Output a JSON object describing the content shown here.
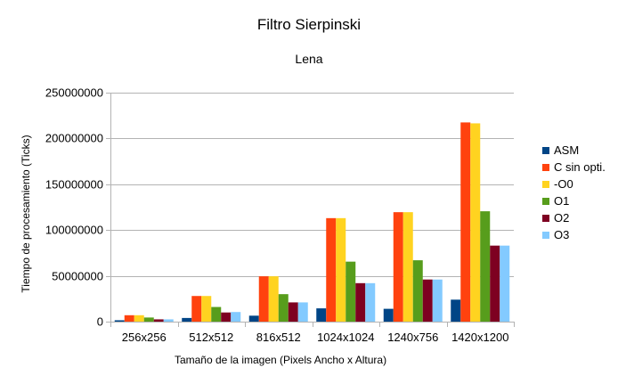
{
  "chart_data": {
    "type": "bar",
    "title": "Filtro Sierpinski",
    "subtitle": "Lena",
    "xlabel": "Tamaño de la imagen (Pixels Ancho x Altura)",
    "ylabel": "Tiempo de procesamiento (Ticks)",
    "ylim": [
      0,
      250000000
    ],
    "yticks": [
      0,
      50000000,
      100000000,
      150000000,
      200000000,
      250000000
    ],
    "ytick_labels": [
      "0",
      "50000000",
      "100000000",
      "150000000",
      "200000000",
      "250000000"
    ],
    "categories": [
      "256x256",
      "512x512",
      "816x512",
      "1024x1024",
      "1240x756",
      "1420x1200"
    ],
    "grid": true,
    "legend_position": "right",
    "series": [
      {
        "name": "ASM",
        "color": "#004586",
        "values": [
          1500000,
          4000000,
          6500000,
          14500000,
          14000000,
          24000000
        ]
      },
      {
        "name": "C sin opti.",
        "color": "#ff420e",
        "values": [
          7000000,
          28000000,
          49500000,
          113000000,
          119500000,
          217500000
        ]
      },
      {
        "name": "-O0",
        "color": "#ffd320",
        "values": [
          7000000,
          28000000,
          49500000,
          113000000,
          119500000,
          216500000
        ]
      },
      {
        "name": "O1",
        "color": "#579d1c",
        "values": [
          4500000,
          16000000,
          30000000,
          65500000,
          67000000,
          120500000
        ]
      },
      {
        "name": "O2",
        "color": "#7e0021",
        "values": [
          2500000,
          10000000,
          21000000,
          42000000,
          46000000,
          83000000
        ]
      },
      {
        "name": "O3",
        "color": "#83caff",
        "values": [
          2500000,
          10500000,
          21000000,
          42000000,
          46000000,
          83000000
        ]
      }
    ]
  }
}
